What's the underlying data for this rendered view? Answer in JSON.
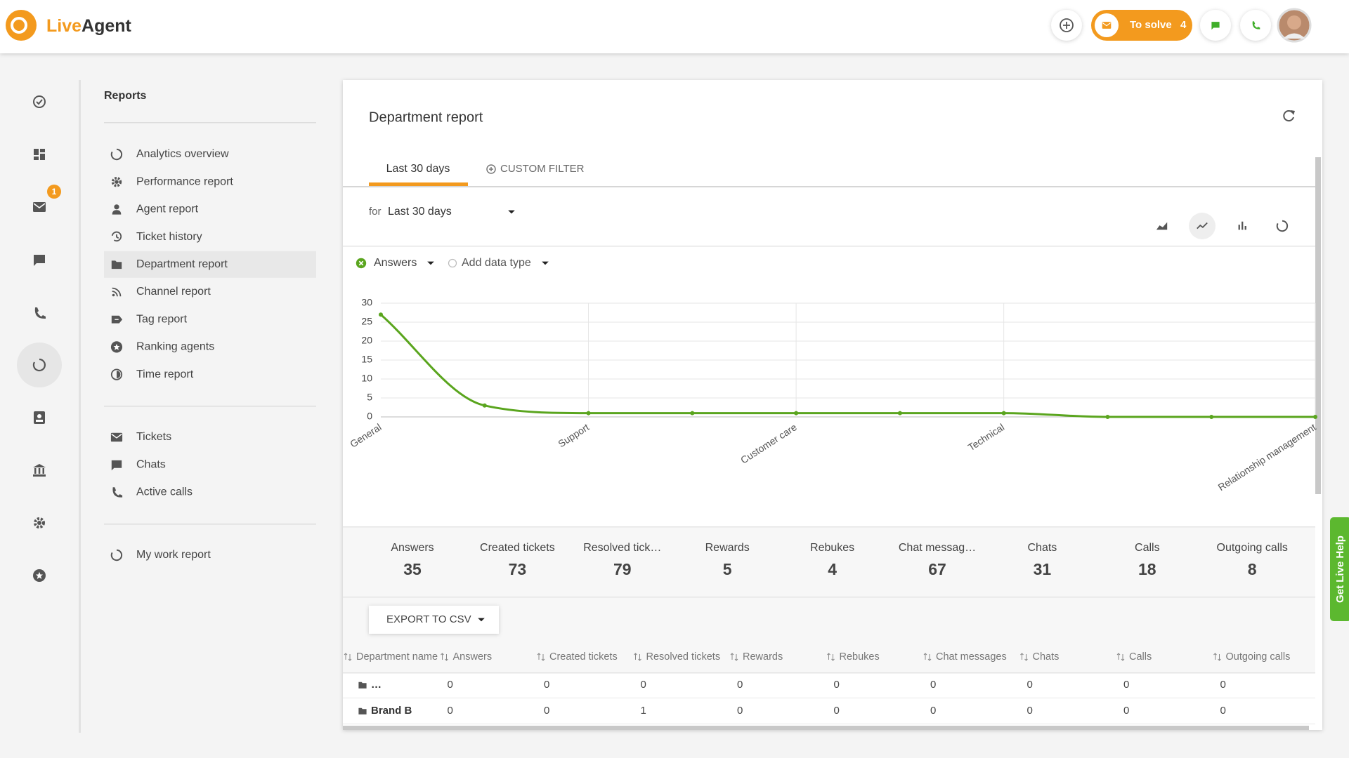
{
  "header": {
    "brand": [
      "Live",
      "Agent"
    ],
    "to_solve": "To solve",
    "to_solve_count": 4
  },
  "rail": {
    "badge": 1
  },
  "sidebar": {
    "title": "Reports",
    "groups": [
      [
        "Analytics overview",
        "Performance report",
        "Agent report",
        "Ticket history",
        "Department report",
        "Channel report",
        "Tag report",
        "Ranking agents",
        "Time report"
      ],
      [
        "Tickets",
        "Chats",
        "Active calls"
      ],
      [
        "My work report"
      ]
    ]
  },
  "report": {
    "title": "Department report",
    "tabs": [
      "Last 30 days",
      "CUSTOM FILTER"
    ],
    "period_prefix": "for",
    "period": "Last 30 days",
    "add_data_type": "Add data type",
    "summary": [
      {
        "label": "Answers",
        "value": 35
      },
      {
        "label": "Created tickets",
        "value": 73
      },
      {
        "label": "Resolved tick…",
        "value": 79
      },
      {
        "label": "Rewards",
        "value": 5
      },
      {
        "label": "Rebukes",
        "value": 4
      },
      {
        "label": "Chat messag…",
        "value": 67
      },
      {
        "label": "Chats",
        "value": 31
      },
      {
        "label": "Calls",
        "value": 18
      },
      {
        "label": "Outgoing calls",
        "value": 8
      }
    ],
    "export": "EXPORT TO CSV",
    "table": {
      "columns": [
        "Department name",
        "Answers",
        "Created tickets",
        "Resolved tickets",
        "Rewards",
        "Rebukes",
        "Chat messages",
        "Chats",
        "Calls",
        "Outgoing calls"
      ],
      "rows": [
        [
          "…",
          0,
          0,
          0,
          0,
          0,
          0,
          0,
          0,
          0
        ],
        [
          "Brand B",
          0,
          0,
          1,
          0,
          0,
          0,
          0,
          0,
          0
        ]
      ]
    }
  },
  "chart_data": {
    "type": "line",
    "categories": [
      "General",
      null,
      "Support",
      null,
      "Customer care",
      null,
      "Technical",
      null,
      null,
      "Relationship management"
    ],
    "series": [
      {
        "name": "Answers",
        "color": "#5aa51e",
        "values": [
          27,
          3,
          1,
          1,
          1,
          1,
          1,
          0,
          0,
          0
        ]
      }
    ],
    "ylim": [
      0,
      30
    ],
    "yticks": [
      0,
      5,
      10,
      15,
      20,
      25,
      30
    ],
    "grid": true
  },
  "live_help": "Get Live Help"
}
